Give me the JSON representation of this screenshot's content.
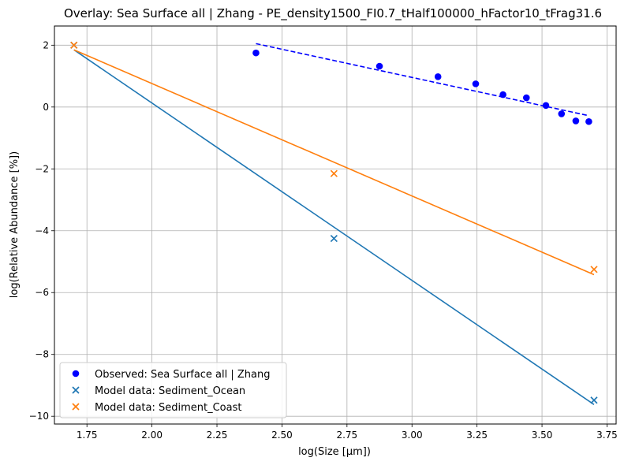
{
  "chart_data": {
    "type": "scatter",
    "title": "Overlay: Sea Surface all | Zhang - PE_density1500_FI0.7_tHalf100000_hFactor10_tFrag31.6",
    "xlabel": "log(Size [µm])",
    "ylabel": "log(Relative Abundance [%])",
    "xlim": [
      1.625,
      3.785
    ],
    "ylim": [
      -10.25,
      2.62
    ],
    "xticks": [
      1.75,
      2.0,
      2.25,
      2.5,
      2.75,
      3.0,
      3.25,
      3.5,
      3.75
    ],
    "xtick_labels": [
      "1.75",
      "2.00",
      "2.25",
      "2.50",
      "2.75",
      "3.00",
      "3.25",
      "3.50",
      "3.75"
    ],
    "yticks": [
      -10,
      -8,
      -6,
      -4,
      -2,
      0,
      2
    ],
    "ytick_labels": [
      "−10",
      "−8",
      "−6",
      "−4",
      "−2",
      "0",
      "2"
    ],
    "grid": true,
    "legend_position": "lower-left",
    "series": [
      {
        "name": "Observed: Sea Surface all | Zhang",
        "marker": "circle",
        "color": "#0000ff",
        "x": [
          2.4,
          2.875,
          3.1,
          3.245,
          3.35,
          3.44,
          3.515,
          3.575,
          3.63,
          3.68
        ],
        "y": [
          1.75,
          1.32,
          0.98,
          0.75,
          0.4,
          0.3,
          0.05,
          -0.22,
          -0.45,
          -0.47
        ]
      },
      {
        "name": "Model data: Sediment_Ocean",
        "marker": "x",
        "color": "#1f77b4",
        "x": [
          1.7,
          2.7,
          3.7
        ],
        "y": [
          2.0,
          -4.25,
          -9.48
        ]
      },
      {
        "name": "Model data: Sediment_Coast",
        "marker": "x",
        "color": "#ff7f0e",
        "x": [
          1.7,
          2.7,
          3.7
        ],
        "y": [
          2.0,
          -2.15,
          -5.25
        ]
      }
    ],
    "fit_lines": [
      {
        "color": "#0000ff",
        "style": "dashed",
        "x": [
          2.4,
          3.68
        ],
        "y": [
          2.05,
          -0.28
        ]
      },
      {
        "color": "#1f77b4",
        "style": "solid",
        "x": [
          1.7,
          3.7
        ],
        "y": [
          1.85,
          -9.62
        ]
      },
      {
        "color": "#ff7f0e",
        "style": "solid",
        "x": [
          1.7,
          3.7
        ],
        "y": [
          1.85,
          -5.42
        ]
      }
    ]
  }
}
